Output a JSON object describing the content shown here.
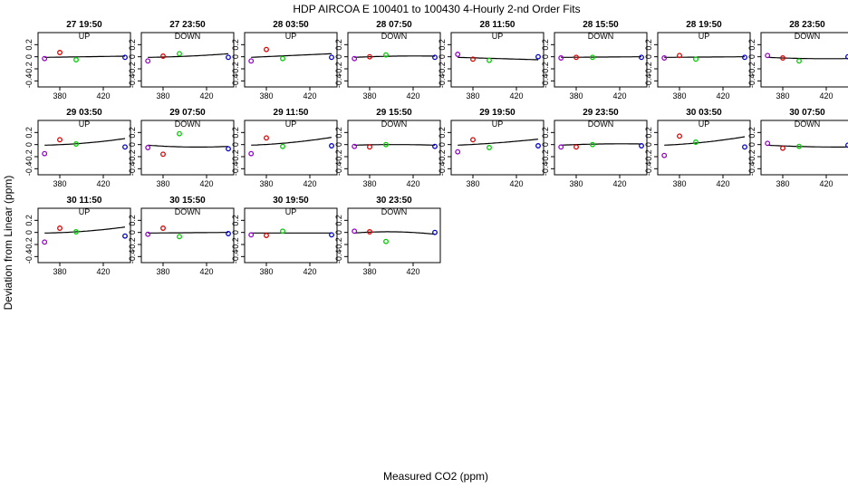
{
  "chart_data": {
    "type": "scatter",
    "title": "HDP   AIRCOA E   100401 to 100430   4-Hourly 2-nd Order Fits",
    "xlabel": "Measured CO2 (ppm)",
    "ylabel": "Deviation from Linear (ppm)",
    "xlim": [
      360,
      445
    ],
    "ylim": [
      -0.5,
      0.4
    ],
    "xticks": [
      380,
      420
    ],
    "yticks": [
      -0.4,
      -0.2,
      0.0,
      0.2
    ],
    "ytick_labels": [
      "-0.4",
      "-0.2",
      "0",
      "0.2"
    ],
    "xtick_labels": [
      "380",
      "420"
    ],
    "standard_colors": [
      "#9900cc",
      "#dd0000",
      "#00cc00",
      "#0000cc"
    ],
    "standard_x": [
      366,
      380,
      395,
      440
    ],
    "panels": [
      {
        "title": "27 19:50",
        "dir": "UP",
        "y": [
          -0.03,
          0.07,
          -0.05,
          -0.01
        ],
        "coef": [
          0.0,
          0.0
        ]
      },
      {
        "title": "27 23:50",
        "dir": "DOWN",
        "y": [
          -0.07,
          0.01,
          0.05,
          -0.01
        ],
        "coef": [
          0.07,
          -8e-05
        ]
      },
      {
        "title": "28 03:50",
        "dir": "UP",
        "y": [
          -0.07,
          0.12,
          -0.03,
          -0.01
        ],
        "coef": [
          0.03,
          -3e-05
        ]
      },
      {
        "title": "28 07:50",
        "dir": "DOWN",
        "y": [
          -0.03,
          0.0,
          0.03,
          -0.01
        ],
        "coef": [
          0.02,
          -1e-05
        ]
      },
      {
        "title": "28 11:50",
        "dir": "UP",
        "y": [
          0.04,
          -0.04,
          -0.06,
          0.0
        ],
        "coef": [
          -0.05,
          5e-05
        ]
      },
      {
        "title": "28 15:50",
        "dir": "DOWN",
        "y": [
          -0.02,
          -0.01,
          -0.01,
          -0.01
        ],
        "coef": [
          0.0,
          0.0
        ]
      },
      {
        "title": "28 19:50",
        "dir": "UP",
        "y": [
          -0.02,
          0.02,
          -0.04,
          -0.01
        ],
        "coef": [
          0.0,
          0.0
        ]
      },
      {
        "title": "28 23:50",
        "dir": "DOWN",
        "y": [
          0.02,
          -0.02,
          -0.07,
          0.0
        ],
        "coef": [
          -0.05,
          4e-05
        ]
      },
      {
        "title": "29 03:50",
        "dir": "UP",
        "y": [
          -0.15,
          0.08,
          0.01,
          -0.04
        ],
        "coef": [
          0.1,
          -0.00012
        ]
      },
      {
        "title": "29 07:50",
        "dir": "DOWN",
        "y": [
          -0.05,
          -0.16,
          0.18,
          -0.07
        ],
        "coef": [
          0.12,
          -0.00014
        ]
      },
      {
        "title": "29 11:50",
        "dir": "UP",
        "y": [
          -0.15,
          0.11,
          -0.03,
          -0.02
        ],
        "coef": [
          0.07,
          -9e-05
        ]
      },
      {
        "title": "29 15:50",
        "dir": "DOWN",
        "y": [
          -0.03,
          -0.04,
          0.0,
          -0.03
        ],
        "coef": [
          0.01,
          0.0
        ]
      },
      {
        "title": "29 19:50",
        "dir": "UP",
        "y": [
          -0.12,
          0.08,
          -0.05,
          -0.02
        ],
        "coef": [
          0.04,
          -5e-05
        ]
      },
      {
        "title": "29 23:50",
        "dir": "DOWN",
        "y": [
          -0.04,
          -0.04,
          0.0,
          -0.02
        ],
        "coef": [
          0.02,
          -1e-05
        ]
      },
      {
        "title": "30 03:50",
        "dir": "UP",
        "y": [
          -0.18,
          0.14,
          0.04,
          -0.04
        ],
        "coef": [
          0.1,
          -0.00012
        ]
      },
      {
        "title": "30 07:50",
        "dir": "DOWN",
        "y": [
          0.02,
          -0.06,
          -0.03,
          -0.01
        ],
        "coef": [
          -0.03,
          2e-05
        ]
      },
      {
        "title": "30 11:50",
        "dir": "UP",
        "y": [
          -0.16,
          0.07,
          0.01,
          -0.06
        ],
        "coef": [
          0.08,
          -0.0001
        ]
      },
      {
        "title": "30 15:50",
        "dir": "DOWN",
        "y": [
          -0.03,
          0.07,
          -0.07,
          -0.02
        ],
        "coef": [
          0.0,
          0.0
        ]
      },
      {
        "title": "30 19:50",
        "dir": "UP",
        "y": [
          -0.04,
          -0.05,
          0.02,
          -0.04
        ],
        "coef": [
          0.03,
          -3e-05
        ]
      },
      {
        "title": "30 23:50",
        "dir": "DOWN",
        "y": [
          0.02,
          0.01,
          -0.15,
          0.0
        ],
        "coef": [
          -0.13,
          0.00016
        ]
      }
    ]
  }
}
